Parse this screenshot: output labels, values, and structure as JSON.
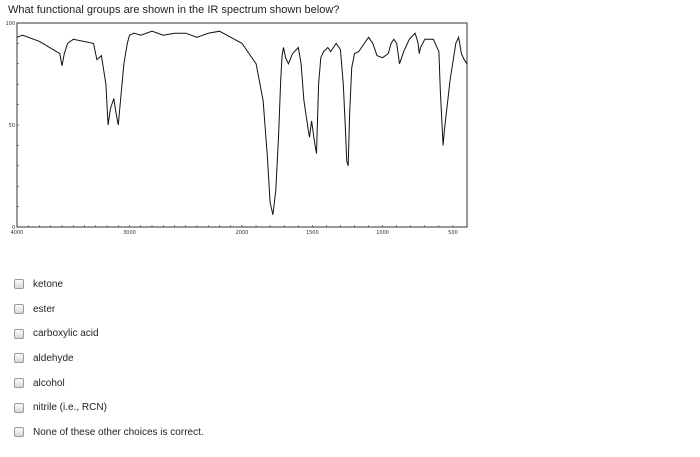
{
  "question": "What functional groups are shown in the IR spectrum shown below?",
  "chart_data": {
    "type": "line",
    "title": "",
    "xlabel": "",
    "ylabel": "",
    "xlim": [
      4000,
      400
    ],
    "ylim": [
      0,
      100
    ],
    "x_ticks": [
      "4000",
      "3000",
      "2000",
      "1500",
      "1000",
      "500"
    ],
    "y_ticks": [
      "100",
      "50",
      "0"
    ],
    "grid": false,
    "series": [
      {
        "x": [
          4000,
          3950,
          3800,
          3650,
          3620,
          3600,
          3580,
          3550,
          3500,
          3320,
          3290,
          3250,
          3210,
          3190,
          3170,
          3140,
          3120,
          3100,
          3080,
          3050,
          3020,
          3000,
          2960,
          2900,
          2800,
          2700,
          2600,
          2500,
          2400,
          2300,
          2200,
          2100,
          2000,
          1900,
          1850,
          1820,
          1800,
          1780,
          1760,
          1740,
          1725,
          1715,
          1705,
          1690,
          1670,
          1640,
          1600,
          1580,
          1560,
          1530,
          1520,
          1505,
          1495,
          1485,
          1470,
          1455,
          1440,
          1420,
          1390,
          1370,
          1330,
          1300,
          1280,
          1265,
          1255,
          1245,
          1235,
          1220,
          1200,
          1170,
          1130,
          1100,
          1070,
          1040,
          1000,
          960,
          940,
          920,
          900,
          880,
          850,
          810,
          770,
          760,
          748,
          740,
          730,
          700,
          640,
          600,
          590,
          570,
          560,
          520,
          480,
          460,
          440,
          420,
          400
        ],
        "y": [
          93,
          94,
          91,
          86,
          85,
          79,
          85,
          90,
          92,
          90,
          82,
          84,
          70,
          50,
          58,
          63,
          56,
          50,
          62,
          80,
          90,
          94,
          95,
          94,
          96,
          94,
          95,
          95,
          93,
          95,
          96,
          93,
          90,
          80,
          62,
          35,
          12,
          6,
          18,
          45,
          72,
          84,
          88,
          83,
          80,
          85,
          88,
          80,
          62,
          48,
          44,
          52,
          47,
          42,
          36,
          70,
          83,
          86,
          88,
          86,
          90,
          87,
          70,
          48,
          32,
          30,
          55,
          78,
          85,
          86,
          90,
          93,
          90,
          84,
          83,
          85,
          90,
          92,
          90,
          80,
          86,
          92,
          95,
          93,
          90,
          85,
          88,
          92,
          92,
          86,
          67,
          40,
          48,
          72,
          90,
          93,
          85,
          82,
          80
        ]
      }
    ]
  },
  "options": [
    {
      "label": "ketone"
    },
    {
      "label": "ester"
    },
    {
      "label": "carboxylic acid"
    },
    {
      "label": "aldehyde"
    },
    {
      "label": "alcohol"
    },
    {
      "label": "nitrile (i.e., RCN)"
    },
    {
      "label": "None of these other choices is correct."
    }
  ]
}
